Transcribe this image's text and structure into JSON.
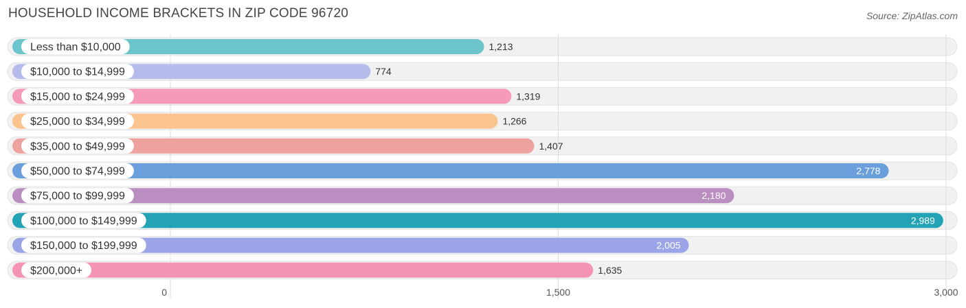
{
  "title": "HOUSEHOLD INCOME BRACKETS IN ZIP CODE 96720",
  "source": "Source: ZipAtlas.com",
  "chart_data": {
    "type": "bar",
    "orientation": "horizontal",
    "title": "HOUSEHOLD INCOME BRACKETS IN ZIP CODE 96720",
    "categories": [
      "Less than $10,000",
      "$10,000 to $14,999",
      "$15,000 to $24,999",
      "$25,000 to $34,999",
      "$35,000 to $49,999",
      "$50,000 to $74,999",
      "$75,000 to $99,999",
      "$100,000 to $149,999",
      "$150,000 to $199,999",
      "$200,000+"
    ],
    "values": [
      1213,
      774,
      1319,
      1266,
      1407,
      2778,
      2180,
      2989,
      2005,
      1635
    ],
    "value_labels": [
      "1,213",
      "774",
      "1,319",
      "1,266",
      "1,407",
      "2,778",
      "2,180",
      "2,989",
      "2,005",
      "1,635"
    ],
    "colors": [
      "#6cc5cb",
      "#b5bcec",
      "#f59bb9",
      "#fbc48f",
      "#eea29e",
      "#6b9fdc",
      "#bb8ec1",
      "#25a3b6",
      "#9ba4e6",
      "#f593b5"
    ],
    "xlim": [
      0,
      3000
    ],
    "ticks": [
      0,
      1500,
      3000
    ],
    "tick_labels": [
      "0",
      "1,500",
      "3,000"
    ],
    "grid": true,
    "legend": "none"
  }
}
